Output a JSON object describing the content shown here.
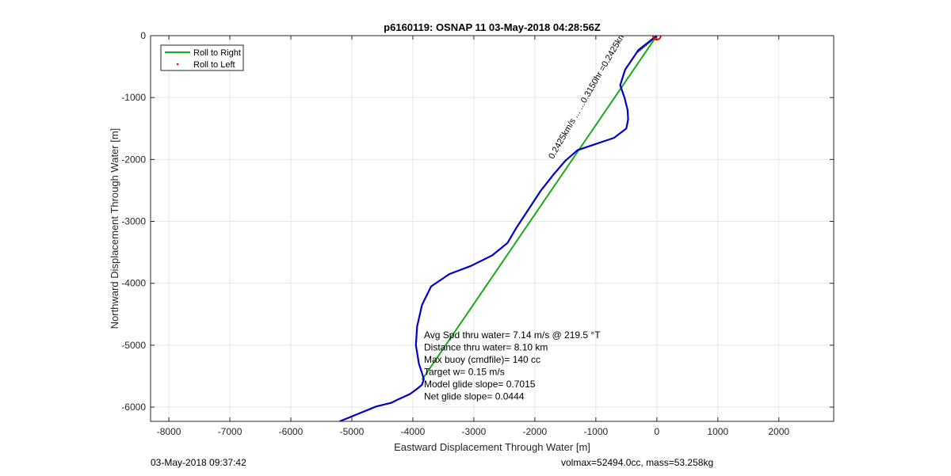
{
  "footer": {
    "date": "03-May-2018 09:37:42",
    "vol_mass": "volmax=52494.0cc, mass=53.258kg"
  },
  "chart_data": {
    "type": "line",
    "title": "p6160119: OSNAP 11 03-May-2018 04:28:56Z",
    "xlabel": "Eastward Displacement Through Water [m]",
    "ylabel": "Northward Displacement Through Water [m]",
    "xlim": [
      -8300,
      2900
    ],
    "ylim": [
      -6230,
      0
    ],
    "xticks": [
      -8000,
      -7000,
      -6000,
      -5000,
      -4000,
      -3000,
      -2000,
      -1000,
      0,
      1000,
      2000
    ],
    "yticks": [
      0,
      -1000,
      -2000,
      -3000,
      -4000,
      -5000,
      -6000
    ],
    "grid": true,
    "legend_position": "top-left",
    "legend": [
      "Roll to Right",
      "Roll to Left"
    ],
    "series": [
      {
        "name": "Roll to Right",
        "color": "#1aaa1a",
        "x": [
          0,
          -3850
        ],
        "y": [
          0,
          -5560
        ]
      },
      {
        "name": "",
        "color": "#0000c8",
        "x": [
          0,
          -300,
          -520,
          -600,
          -530,
          -480,
          -470,
          -500,
          -700,
          -1000,
          -1300,
          -1500,
          -1700,
          -1900,
          -2100,
          -2300,
          -2450,
          -2700,
          -3050,
          -3400,
          -3700,
          -3850,
          -3930,
          -3950,
          -3900,
          -3850,
          -3820,
          -3850,
          -3950,
          -4050,
          -4250,
          -4350,
          -4600,
          -4900,
          -5200
        ],
        "y": [
          0,
          -230,
          -550,
          -800,
          -1000,
          -1200,
          -1350,
          -1500,
          -1650,
          -1750,
          -1850,
          -2020,
          -2250,
          -2500,
          -2800,
          -3100,
          -3350,
          -3550,
          -3720,
          -3850,
          -4050,
          -4350,
          -4700,
          -5000,
          -5300,
          -5450,
          -5550,
          -5640,
          -5720,
          -5790,
          -5880,
          -5930,
          -5990,
          -6110,
          -6230
        ]
      }
    ],
    "start_marker": {
      "x": 0,
      "y": 0,
      "color": "#ff0000"
    },
    "current_label": "0.2425km/s ...   ...0.3150hr =0.2425km",
    "annotation": [
      "Avg Spd thru water=  7.14 m/s @ 219.5 °T",
      "Distance thru water=  8.10 km",
      "Max buoy (cmdfile)= 140 cc",
      "Target w= 0.15 m/s",
      "Model glide slope= 0.7015",
      "Net glide slope= 0.0444"
    ]
  }
}
